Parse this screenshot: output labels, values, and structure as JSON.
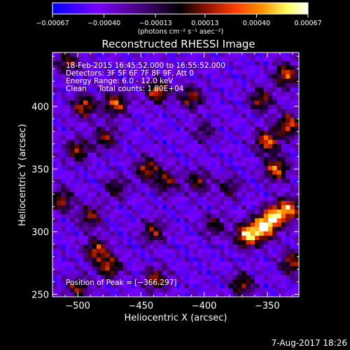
{
  "chart_data": {
    "type": "heatmap",
    "title": "Reconstructed RHESSI Image",
    "xlabel": "Heliocentric X (arcsec)",
    "ylabel": "Heliocentric Y (arcsec)",
    "xlim": [
      -520,
      -325
    ],
    "ylim": [
      248,
      443
    ],
    "x_ticks": [
      -500,
      -450,
      -400,
      -350
    ],
    "x_tick_labels": [
      "−500",
      "−450",
      "−400",
      "−350"
    ],
    "y_ticks": [
      250,
      300,
      350,
      400
    ],
    "y_tick_labels": [
      "250",
      "300",
      "350",
      "400"
    ],
    "colorbar": {
      "range": [
        -0.00067,
        0.00067
      ],
      "ticks": [
        -0.00067,
        -0.0004,
        -0.00013,
        0.00013,
        0.0004,
        0.00067
      ],
      "tick_labels": [
        "−0.00067",
        "−0.00040",
        "−0.00013",
        "0.00013",
        "0.00040",
        "0.00067"
      ],
      "unit_label": "(photons cm⁻² s⁻¹ asec⁻²)",
      "stops": [
        "#0000ff",
        "#7a00ff",
        "#3a0060",
        "#000000",
        "#8a1000",
        "#ff4000",
        "#ff9000",
        "#ffff60",
        "#ffffff"
      ]
    },
    "annotations": [
      "18-Feb-2015 16:45:52.000 to 16:55:52.000",
      "Detectors: 3F 5F 6F 7F 8F 9F, Att 0",
      "Energy Range: 6.0 - 12.0 keV",
      "Clean     Total counts: 1.80E+04"
    ],
    "peak_label": "Position of Peak = [−366,297]",
    "peak": [
      -366,
      297
    ],
    "grid": false,
    "sources": [
      {
        "x": -353,
        "y": 303,
        "v": 1.0
      },
      {
        "x": -366,
        "y": 297,
        "v": 1.0
      },
      {
        "x": -345,
        "y": 312,
        "v": 0.85
      },
      {
        "x": -333,
        "y": 318,
        "v": 0.85
      },
      {
        "x": -370,
        "y": 258,
        "v": 0.6
      },
      {
        "x": -343,
        "y": 350,
        "v": 0.8
      },
      {
        "x": -350,
        "y": 372,
        "v": 0.8
      },
      {
        "x": -333,
        "y": 385,
        "v": 0.75
      },
      {
        "x": -335,
        "y": 425,
        "v": 0.75
      },
      {
        "x": -355,
        "y": 405,
        "v": 0.6
      },
      {
        "x": -445,
        "y": 350,
        "v": 0.65
      },
      {
        "x": -430,
        "y": 340,
        "v": 0.55
      },
      {
        "x": -437,
        "y": 412,
        "v": 0.75
      },
      {
        "x": -410,
        "y": 407,
        "v": 0.6
      },
      {
        "x": -495,
        "y": 400,
        "v": 0.7
      },
      {
        "x": -478,
        "y": 375,
        "v": 0.55
      },
      {
        "x": -470,
        "y": 402,
        "v": 0.75
      },
      {
        "x": -500,
        "y": 365,
        "v": 0.6
      },
      {
        "x": -513,
        "y": 325,
        "v": 0.6
      },
      {
        "x": -490,
        "y": 312,
        "v": 0.55
      },
      {
        "x": -485,
        "y": 285,
        "v": 0.7
      },
      {
        "x": -475,
        "y": 272,
        "v": 0.65
      },
      {
        "x": -440,
        "y": 300,
        "v": 0.55
      },
      {
        "x": -438,
        "y": 262,
        "v": 0.6
      },
      {
        "x": -405,
        "y": 340,
        "v": 0.5
      },
      {
        "x": -392,
        "y": 305,
        "v": 0.45
      },
      {
        "x": -380,
        "y": 335,
        "v": 0.4
      },
      {
        "x": -500,
        "y": 255,
        "v": 0.55
      },
      {
        "x": -508,
        "y": 435,
        "v": 0.55
      },
      {
        "x": -470,
        "y": 335,
        "v": 0.45
      },
      {
        "x": -330,
        "y": 275,
        "v": 0.65
      },
      {
        "x": -400,
        "y": 380,
        "v": 0.35
      }
    ]
  },
  "footer": {
    "timestamp": "7-Aug-2017 18:26"
  }
}
